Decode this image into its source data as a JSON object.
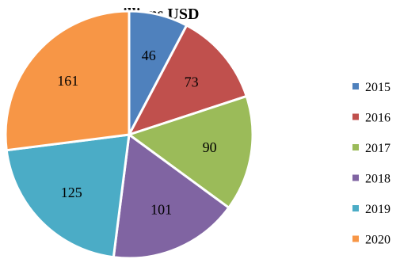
{
  "chart_data": {
    "type": "pie",
    "title": "millions USD",
    "categories": [
      "2015",
      "2016",
      "2017",
      "2018",
      "2019",
      "2020"
    ],
    "values": [
      46,
      73,
      90,
      101,
      125,
      161
    ],
    "colors": [
      "#4f81bd",
      "#c0504d",
      "#9bbb59",
      "#8064a2",
      "#4bacc6",
      "#f79646"
    ],
    "legend_position": "right",
    "start_angle": "12 o'clock",
    "direction": "clockwise"
  }
}
